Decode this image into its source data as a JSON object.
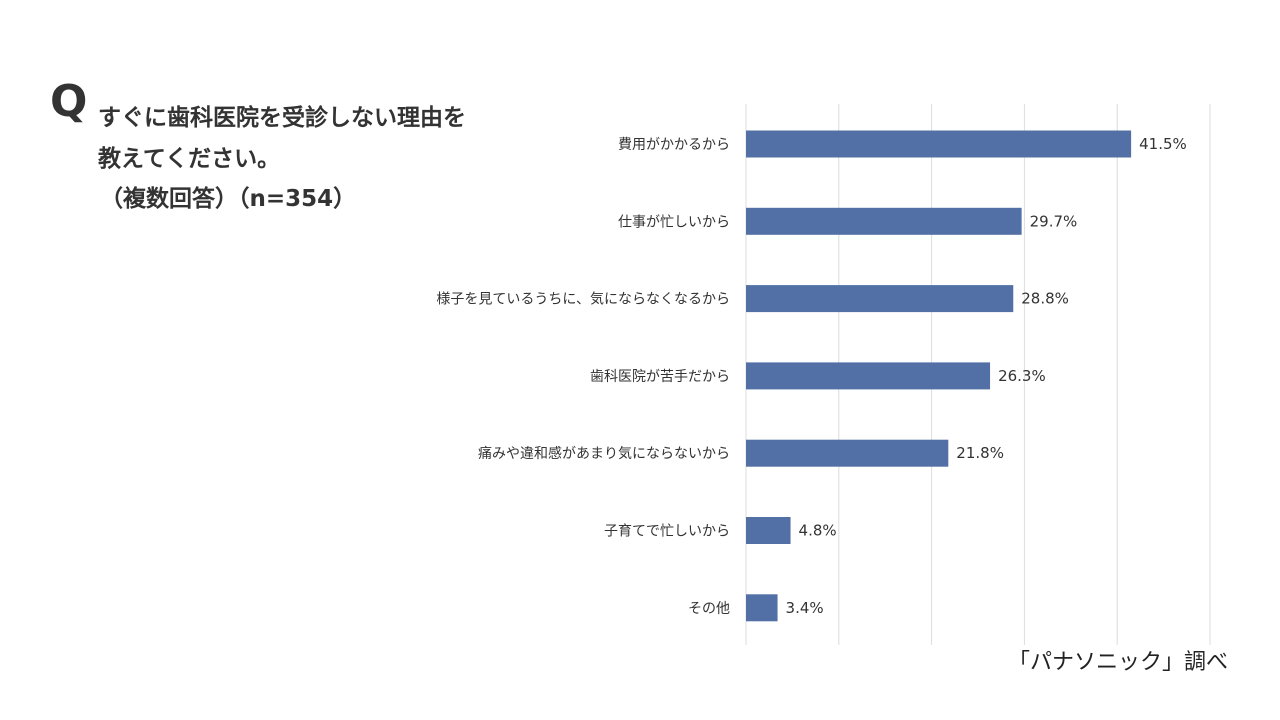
{
  "question": {
    "mark": "Q",
    "line1": "すぐに歯科医院を受診しない理由を",
    "line2": "教えてください。",
    "line3": "（複数回答）（n=354）"
  },
  "source": "「パナソニック」調べ",
  "colors": {
    "bar": "#5270a6",
    "grid": "#dcdcdc",
    "text": "#333333"
  },
  "chart_data": {
    "type": "bar",
    "orientation": "horizontal",
    "categories": [
      "費用がかかるから",
      "仕事が忙しいから",
      "様子を見ているうちに、気にならなくなるから",
      "歯科医院が苦手だから",
      "痛みや違和感があまり気にならないから",
      "子育てで忙しいから",
      "その他"
    ],
    "values": [
      41.5,
      29.7,
      28.8,
      26.3,
      21.8,
      4.8,
      3.4
    ],
    "value_labels": [
      "41.5%",
      "29.7%",
      "28.8%",
      "26.3%",
      "21.8%",
      "4.8%",
      "3.4%"
    ],
    "xlim": [
      0,
      50
    ],
    "grid_step": 10,
    "grid": true,
    "legend": "none"
  }
}
